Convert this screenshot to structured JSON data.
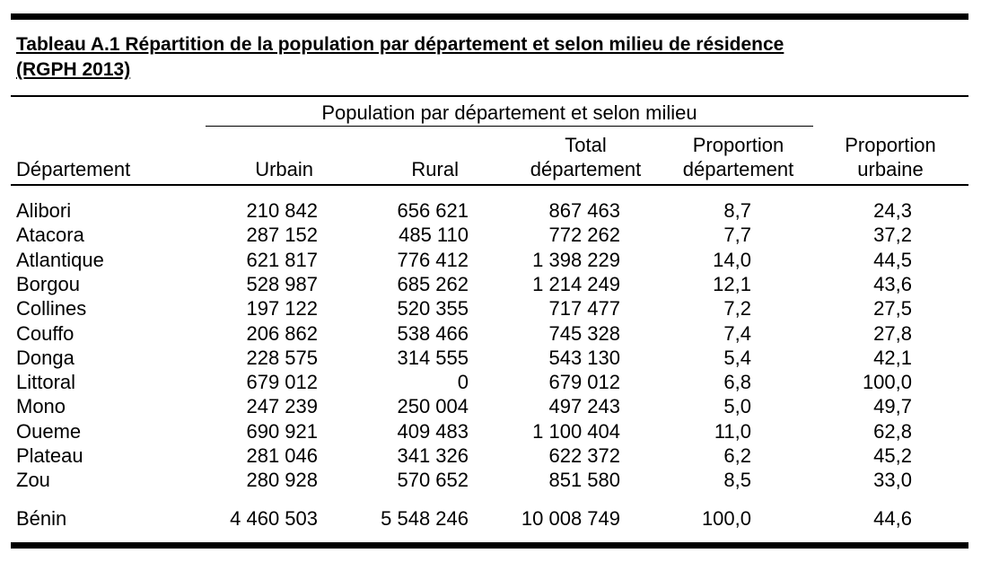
{
  "title_line1": "Tableau A.1  Répartition de la population par département et selon milieu de résidence",
  "title_line2": "(RGPH 2013)",
  "group_header": "Population par département et selon milieu",
  "headers": {
    "departement": "Département",
    "urbain": "Urbain",
    "rural": "Rural",
    "total_line1": "Total",
    "total_line2": "département",
    "propdep_line1": "Proportion",
    "propdep_line2": "département",
    "propurb_line1": "Proportion",
    "propurb_line2": "urbaine"
  },
  "rows": [
    {
      "dep": "Alibori",
      "urbain": "210 842",
      "rural": "656 621",
      "total": "867 463",
      "propdep": "8,7",
      "propurb": "24,3"
    },
    {
      "dep": "Atacora",
      "urbain": "287 152",
      "rural": "485 110",
      "total": "772 262",
      "propdep": "7,7",
      "propurb": "37,2"
    },
    {
      "dep": "Atlantique",
      "urbain": "621 817",
      "rural": "776 412",
      "total": "1 398 229",
      "propdep": "14,0",
      "propurb": "44,5"
    },
    {
      "dep": "Borgou",
      "urbain": "528 987",
      "rural": "685 262",
      "total": "1 214 249",
      "propdep": "12,1",
      "propurb": "43,6"
    },
    {
      "dep": "Collines",
      "urbain": "197 122",
      "rural": "520 355",
      "total": "717 477",
      "propdep": "7,2",
      "propurb": "27,5"
    },
    {
      "dep": "Couffo",
      "urbain": "206 862",
      "rural": "538 466",
      "total": "745 328",
      "propdep": "7,4",
      "propurb": "27,8"
    },
    {
      "dep": "Donga",
      "urbain": "228 575",
      "rural": "314 555",
      "total": "543 130",
      "propdep": "5,4",
      "propurb": "42,1"
    },
    {
      "dep": "Littoral",
      "urbain": "679 012",
      "rural": "0",
      "total": "679 012",
      "propdep": "6,8",
      "propurb": "100,0"
    },
    {
      "dep": "Mono",
      "urbain": "247 239",
      "rural": "250 004",
      "total": "497 243",
      "propdep": "5,0",
      "propurb": "49,7"
    },
    {
      "dep": "Oueme",
      "urbain": "690 921",
      "rural": "409 483",
      "total": "1 100 404",
      "propdep": "11,0",
      "propurb": "62,8"
    },
    {
      "dep": "Plateau",
      "urbain": "281 046",
      "rural": "341 326",
      "total": "622 372",
      "propdep": "6,2",
      "propurb": "45,2"
    },
    {
      "dep": "Zou",
      "urbain": "280 928",
      "rural": "570 652",
      "total": "851 580",
      "propdep": "8,5",
      "propurb": "33,0"
    }
  ],
  "total_row": {
    "dep": "Bénin",
    "urbain": "4 460 503",
    "rural": "5 548 246",
    "total": "10 008 749",
    "propdep": "100,0",
    "propurb": "44,6"
  }
}
